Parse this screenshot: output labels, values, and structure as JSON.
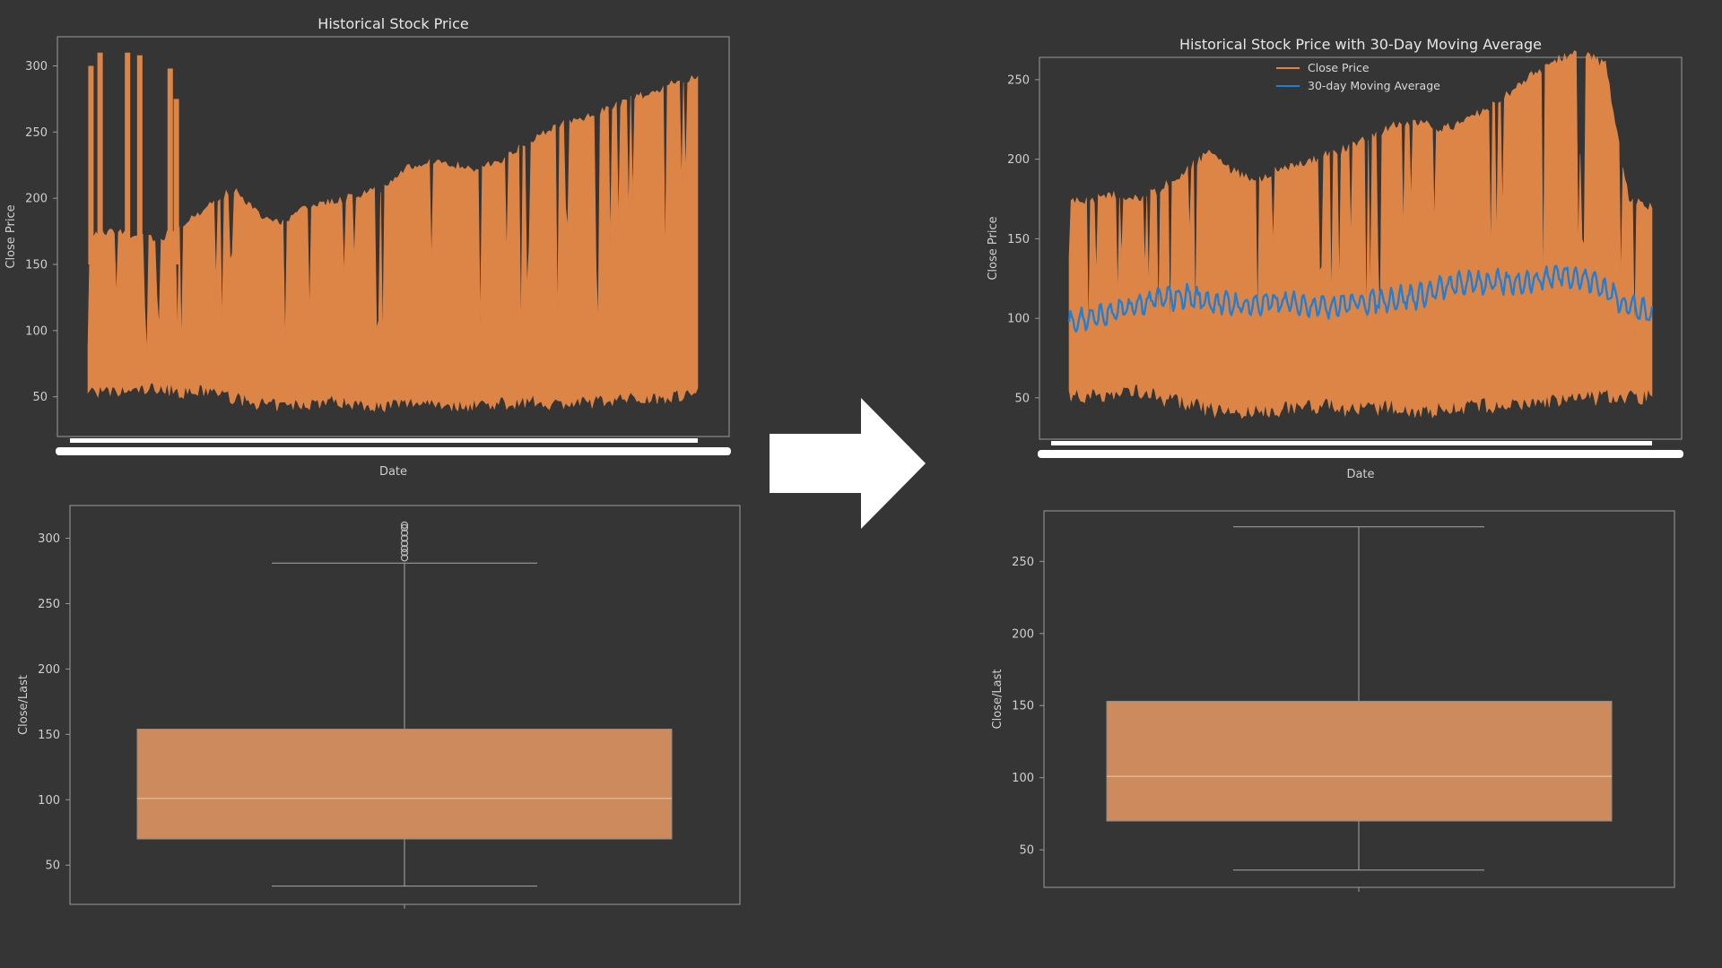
{
  "colors": {
    "background": "#353535",
    "frame": "#9a9a9a",
    "close_price": "#dd8447",
    "moving_average": "#1f7fd6",
    "box_fill": "#cd8a5c",
    "box_edge": "#8c8c8c",
    "whisker": "#a8a8a8",
    "arrow": "#ffffff"
  },
  "arrow_icon": "right-arrow-icon",
  "chart_data": [
    {
      "id": "tl",
      "type": "line",
      "title": "Historical Stock Price",
      "xlabel": "Date",
      "ylabel": "Close Price",
      "ylim": [
        20,
        322
      ],
      "yticks": [
        50,
        100,
        150,
        200,
        250,
        300
      ],
      "x_tick_labels_legible": false,
      "grid": false,
      "series": [
        {
          "name": "",
          "x": [
            0,
            0.04,
            0.08,
            0.12,
            0.16,
            0.2,
            0.24,
            0.28,
            0.32,
            0.36,
            0.4,
            0.44,
            0.48,
            0.52,
            0.56,
            0.6,
            0.64,
            0.68,
            0.72,
            0.76,
            0.8,
            0.84,
            0.88,
            0.92,
            0.96,
            1.0
          ],
          "upper": [
            175,
            178,
            174,
            172,
            185,
            198,
            210,
            190,
            185,
            196,
            200,
            205,
            210,
            225,
            230,
            228,
            225,
            232,
            245,
            255,
            262,
            268,
            276,
            282,
            290,
            294
          ],
          "lower": [
            50,
            48,
            50,
            52,
            48,
            50,
            44,
            40,
            38,
            40,
            42,
            40,
            38,
            40,
            42,
            38,
            40,
            40,
            42,
            40,
            40,
            42,
            44,
            44,
            46,
            48
          ],
          "spikes": [
            300,
            310,
            308,
            298
          ]
        }
      ]
    },
    {
      "id": "tr",
      "type": "line",
      "title": "Historical Stock Price with 30-Day Moving Average",
      "xlabel": "Date",
      "ylabel": "Close Price",
      "ylim": [
        24,
        264
      ],
      "yticks": [
        50,
        100,
        150,
        200,
        250
      ],
      "x_tick_labels_legible": false,
      "grid": false,
      "legend": {
        "position": "upper center",
        "entries": [
          "Close Price",
          "30-day Moving Average"
        ]
      },
      "series": [
        {
          "name": "Close Price",
          "x": [
            0,
            0.04,
            0.08,
            0.12,
            0.16,
            0.2,
            0.24,
            0.28,
            0.32,
            0.36,
            0.4,
            0.44,
            0.48,
            0.52,
            0.56,
            0.6,
            0.64,
            0.68,
            0.72,
            0.76,
            0.8,
            0.84,
            0.88,
            0.92,
            0.96,
            1.0
          ],
          "upper": [
            175,
            178,
            180,
            178,
            185,
            195,
            208,
            195,
            190,
            196,
            200,
            205,
            210,
            218,
            224,
            226,
            222,
            226,
            236,
            246,
            258,
            266,
            270,
            262,
            178,
            172
          ],
          "lower": [
            48,
            46,
            48,
            50,
            45,
            42,
            38,
            36,
            36,
            38,
            40,
            40,
            38,
            38,
            40,
            36,
            38,
            40,
            40,
            40,
            42,
            44,
            44,
            46,
            46,
            46
          ]
        },
        {
          "name": "30-day Moving Average",
          "x": [
            0,
            0.05,
            0.1,
            0.15,
            0.2,
            0.25,
            0.3,
            0.35,
            0.4,
            0.45,
            0.5,
            0.55,
            0.6,
            0.65,
            0.7,
            0.75,
            0.8,
            0.85,
            0.9,
            0.95,
            1.0
          ],
          "y": [
            98,
            101,
            106,
            112,
            114,
            110,
            108,
            110,
            109,
            108,
            110,
            112,
            114,
            120,
            123,
            122,
            124,
            128,
            123,
            110,
            102
          ]
        }
      ]
    },
    {
      "id": "bl",
      "type": "box",
      "ylabel": "Close/Last",
      "ylim": [
        20,
        325
      ],
      "yticks": [
        50,
        100,
        150,
        200,
        250,
        300
      ],
      "whisker_low": 34,
      "q1": 70,
      "median": 101,
      "q3": 154,
      "whisker_high": 281,
      "outliers": [
        285,
        289,
        292,
        296,
        300,
        304,
        308,
        310
      ]
    },
    {
      "id": "br",
      "type": "box",
      "ylabel": "Close/Last",
      "ylim": [
        24,
        285
      ],
      "yticks": [
        50,
        100,
        150,
        200,
        250
      ],
      "whisker_low": 36,
      "q1": 70,
      "median": 101,
      "q3": 153,
      "whisker_high": 274,
      "outliers": []
    }
  ]
}
